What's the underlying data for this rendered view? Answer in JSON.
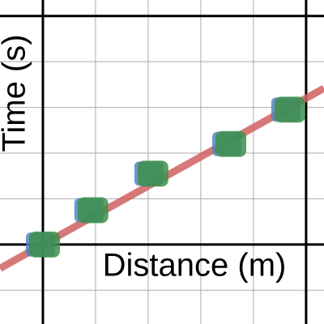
{
  "chart_data": {
    "type": "scatter",
    "x_label": "Distance (m)",
    "y_label": "Time (s)",
    "series": [
      {
        "color": "#3d8f4a",
        "edge_color": "#4a7fc0",
        "x": [
          0,
          0.92,
          2.06,
          3.54,
          4.66
        ],
        "values": [
          0,
          0.75,
          1.55,
          2.2,
          2.95
        ]
      }
    ],
    "fit": {
      "slope": 0.64,
      "intercept": 0,
      "color": "#d06060"
    },
    "xlim": [
      -0.815,
      5.34
    ],
    "ylim": [
      -1.74,
      5.35
    ],
    "xticks": [
      0,
      1,
      2,
      3,
      4,
      5
    ],
    "yticks": [
      -1,
      0,
      1,
      2,
      3,
      4,
      5
    ],
    "xmajor": [
      0,
      5
    ],
    "ymajor": [
      0,
      5
    ],
    "grid": true
  }
}
